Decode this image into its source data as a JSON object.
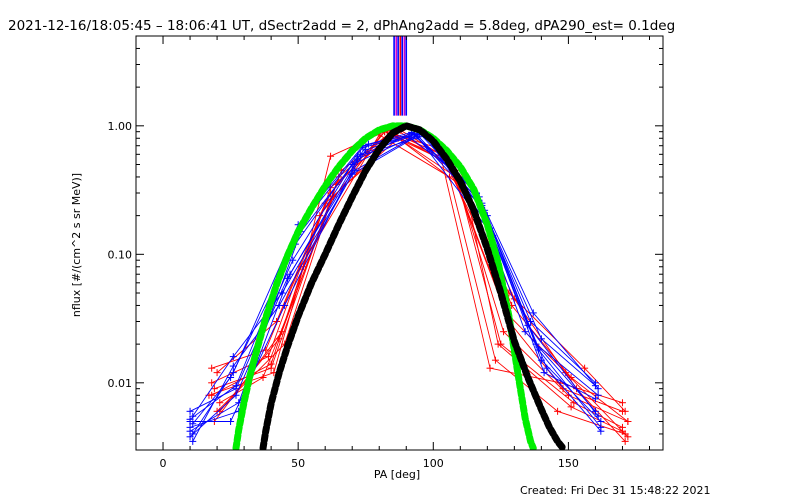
{
  "header": {
    "title": "2021-12-16/18:05:45 – 18:06:41 UT, dSectr2add = 2, dPhAng2add = 5.8deg, dPA290_est=  0.1deg"
  },
  "footer": {
    "created": "Created: Fri Dec 31 15:48:22 2021"
  },
  "colors": {
    "red": "#ff0000",
    "blue": "#0000ff",
    "green": "#00ee00",
    "black": "#000000",
    "magenta": "#cc00cc"
  },
  "chart_data": {
    "type": "line",
    "title": "2021-12-16/18:05:45 – 18:06:41 UT, dSectr2add = 2, dPhAng2add = 5.8deg, dPA290_est=  0.1deg",
    "xlabel": "PA [deg]",
    "ylabel": "nflux [#/(cm^2 s sr MeV)]",
    "xlim": [
      -10,
      185
    ],
    "ylim": [
      0.003,
      5
    ],
    "yscale": "log",
    "grid": false,
    "x_ticks": [
      0,
      50,
      100,
      150
    ],
    "x_tick_labels": [
      "0",
      "50",
      "100",
      "150"
    ],
    "y_ticks": [
      0.01,
      0.1,
      1.0
    ],
    "y_tick_labels": [
      "0.01",
      "0.10",
      "1.00"
    ],
    "vertical_markers": [
      {
        "x": 85.5,
        "color": "#0000ff"
      },
      {
        "x": 86.3,
        "color": "#cc00cc"
      },
      {
        "x": 87.0,
        "color": "#0000ff"
      },
      {
        "x": 87.8,
        "color": "#ff0000"
      },
      {
        "x": 88.5,
        "color": "#0000ff"
      },
      {
        "x": 89.3,
        "color": "#cc00cc"
      },
      {
        "x": 90.0,
        "color": "#0000ff"
      }
    ],
    "series": [
      {
        "color": "red",
        "x": [
          18,
          38,
          62,
          82,
          105,
          128,
          148,
          170
        ],
        "y": [
          0.013,
          0.018,
          0.3,
          0.9,
          0.55,
          0.03,
          0.009,
          0.006
        ]
      },
      {
        "color": "red",
        "x": [
          19,
          40,
          64,
          84,
          107,
          126,
          150,
          172
        ],
        "y": [
          0.009,
          0.013,
          0.35,
          0.85,
          0.5,
          0.025,
          0.008,
          0.005
        ]
      },
      {
        "color": "red",
        "x": [
          17,
          41,
          52,
          62,
          83,
          103,
          128,
          156,
          171
        ],
        "y": [
          0.008,
          0.012,
          0.08,
          0.58,
          0.92,
          0.6,
          0.05,
          0.013,
          0.006
        ]
      },
      {
        "color": "red",
        "x": [
          20,
          45,
          65,
          86,
          108,
          125,
          152,
          170
        ],
        "y": [
          0.006,
          0.02,
          0.4,
          0.95,
          0.45,
          0.02,
          0.007,
          0.0045
        ]
      },
      {
        "color": "red",
        "x": [
          18,
          39,
          51,
          80,
          106,
          123,
          146,
          171
        ],
        "y": [
          0.01,
          0.016,
          0.08,
          0.85,
          0.4,
          0.015,
          0.006,
          0.004
        ]
      },
      {
        "color": "red",
        "x": [
          21,
          37,
          63,
          88,
          109,
          129,
          151,
          172
        ],
        "y": [
          0.007,
          0.011,
          0.28,
          0.92,
          0.5,
          0.04,
          0.011,
          0.005
        ]
      },
      {
        "color": "red",
        "x": [
          19,
          44,
          66,
          84,
          103,
          121,
          147,
          170
        ],
        "y": [
          0.005,
          0.025,
          0.45,
          0.88,
          0.55,
          0.013,
          0.01,
          0.007
        ]
      },
      {
        "color": "red",
        "x": [
          20,
          42,
          60,
          87,
          110,
          130,
          153,
          171
        ],
        "y": [
          0.012,
          0.03,
          0.25,
          0.8,
          0.38,
          0.045,
          0.009,
          0.0035
        ]
      },
      {
        "color": "red",
        "x": [
          18,
          40,
          58,
          82,
          104,
          127,
          149,
          172
        ],
        "y": [
          0.008,
          0.014,
          0.2,
          0.9,
          0.65,
          0.035,
          0.012,
          0.0038
        ]
      },
      {
        "color": "red",
        "x": [
          21,
          43,
          62,
          85,
          112,
          124,
          151,
          170
        ],
        "y": [
          0.006,
          0.022,
          0.33,
          0.86,
          0.32,
          0.02,
          0.0065,
          0.0042
        ]
      },
      {
        "color": "blue",
        "x": [
          10,
          25,
          45,
          72,
          92,
          116,
          136,
          160
        ],
        "y": [
          0.005,
          0.005,
          0.04,
          0.55,
          0.88,
          0.3,
          0.03,
          0.01
        ]
      },
      {
        "color": "blue",
        "x": [
          10,
          27,
          48,
          70,
          94,
          118,
          138,
          161
        ],
        "y": [
          0.006,
          0.009,
          0.09,
          0.5,
          0.85,
          0.25,
          0.02,
          0.008
        ]
      },
      {
        "color": "blue",
        "x": [
          11,
          26,
          50,
          74,
          96,
          120,
          140,
          162
        ],
        "y": [
          0.004,
          0.012,
          0.17,
          0.7,
          0.9,
          0.2,
          0.015,
          0.005
        ]
      },
      {
        "color": "blue",
        "x": [
          10,
          28,
          47,
          73,
          91,
          114,
          134,
          160
        ],
        "y": [
          0.0045,
          0.006,
          0.07,
          0.6,
          0.82,
          0.35,
          0.025,
          0.006
        ]
      },
      {
        "color": "blue",
        "x": [
          11,
          26,
          44,
          71,
          95,
          117,
          137,
          161
        ],
        "y": [
          0.0055,
          0.016,
          0.05,
          0.45,
          0.87,
          0.28,
          0.035,
          0.009
        ]
      },
      {
        "color": "blue",
        "x": [
          10,
          27,
          46,
          75,
          93,
          119,
          139,
          162
        ],
        "y": [
          0.0038,
          0.008,
          0.065,
          0.65,
          0.86,
          0.22,
          0.018,
          0.0045
        ]
      },
      {
        "color": "blue",
        "x": [
          11,
          25,
          49,
          72,
          97,
          121,
          141,
          160
        ],
        "y": [
          0.0048,
          0.011,
          0.12,
          0.58,
          0.84,
          0.16,
          0.012,
          0.0075
        ]
      },
      {
        "color": "blue",
        "x": [
          10,
          28,
          51,
          76,
          92,
          115,
          135,
          161
        ],
        "y": [
          0.0042,
          0.007,
          0.15,
          0.72,
          0.89,
          0.32,
          0.028,
          0.0055
        ]
      },
      {
        "color": "blue",
        "x": [
          11,
          26,
          43,
          70,
          94,
          122,
          142,
          162
        ],
        "y": [
          0.0035,
          0.0135,
          0.04,
          0.42,
          0.83,
          0.14,
          0.013,
          0.0042
        ]
      },
      {
        "color": "blue",
        "x": [
          10,
          27,
          52,
          74,
          96,
          118,
          140,
          160
        ],
        "y": [
          0.0052,
          0.0095,
          0.18,
          0.68,
          0.88,
          0.24,
          0.022,
          0.0095
        ]
      },
      {
        "color": "green",
        "style": "thick-dots",
        "x": [
          27,
          28,
          30,
          32,
          35,
          38,
          42,
          46,
          50,
          55,
          60,
          65,
          70,
          75,
          80,
          85,
          90,
          95,
          100,
          105,
          110,
          115,
          120,
          124,
          128,
          131,
          134,
          136,
          137
        ],
        "y": [
          0.0031,
          0.0043,
          0.0071,
          0.011,
          0.019,
          0.032,
          0.058,
          0.097,
          0.15,
          0.23,
          0.34,
          0.48,
          0.64,
          0.8,
          0.93,
          1.0,
          1.0,
          0.93,
          0.8,
          0.64,
          0.48,
          0.32,
          0.17,
          0.086,
          0.033,
          0.013,
          0.0053,
          0.0035,
          0.0031
        ]
      },
      {
        "color": "black",
        "style": "thick-dots",
        "x": [
          37,
          38,
          40,
          43,
          46,
          50,
          55,
          60,
          65,
          70,
          75,
          80,
          85,
          90,
          95,
          100,
          105,
          110,
          115,
          120,
          125,
          130,
          135,
          140,
          143,
          146,
          148
        ],
        "y": [
          0.0031,
          0.0042,
          0.0069,
          0.012,
          0.019,
          0.033,
          0.06,
          0.1,
          0.17,
          0.28,
          0.45,
          0.66,
          0.88,
          1.0,
          0.93,
          0.76,
          0.55,
          0.37,
          0.22,
          0.11,
          0.05,
          0.021,
          0.011,
          0.0062,
          0.0045,
          0.0035,
          0.0031
        ]
      }
    ]
  }
}
